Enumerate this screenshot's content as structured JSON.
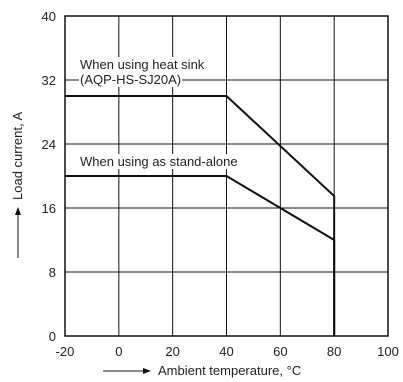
{
  "chart_data": {
    "type": "line",
    "xlabel": "Ambient temperature, °C",
    "ylabel": "Load current, A",
    "xlim": [
      -20,
      100
    ],
    "ylim": [
      0,
      40
    ],
    "xticks": [
      -20,
      0,
      20,
      40,
      60,
      80,
      100
    ],
    "yticks": [
      0,
      8,
      16,
      24,
      32,
      40
    ],
    "grid": true,
    "series": [
      {
        "annotation": [
          "When using heat sink",
          "(AQP-HS-SJ20A)"
        ],
        "x": [
          -20,
          40,
          80,
          80
        ],
        "y": [
          30,
          30,
          17.5,
          0
        ]
      },
      {
        "annotation": [
          "When using as stand-alone"
        ],
        "x": [
          -20,
          40,
          80,
          80
        ],
        "y": [
          20,
          20,
          12,
          0
        ]
      }
    ]
  }
}
